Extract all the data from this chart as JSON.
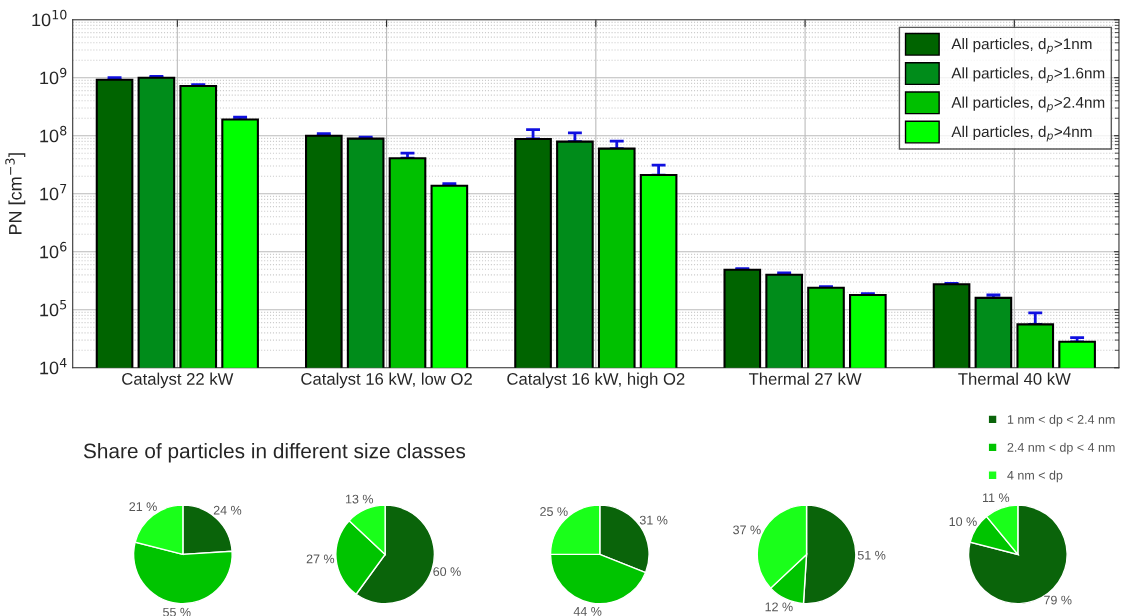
{
  "chart_data": [
    {
      "type": "bar",
      "ylabel": "PN [cm$^{−3}$]",
      "categories": [
        "Catalyst 22 kW",
        "Catalyst 16 kW, low O2",
        "Catalyst 16 kW, high O2",
        "Thermal 27 kW",
        "Thermal 40 kW"
      ],
      "log": "y",
      "ylim": [
        10000,
        10000000000
      ],
      "yticks": [
        {
          "value": 10000,
          "label": "10$^{4}$"
        },
        {
          "value": 100000,
          "label": "10$^{5}$"
        },
        {
          "value": 1000000,
          "label": "10$^{6}$"
        },
        {
          "value": 10000000,
          "label": "10$^{7}$"
        },
        {
          "value": 100000000,
          "label": "10$^{8}$"
        },
        {
          "value": 1000000000,
          "label": "10$^{9}$"
        },
        {
          "value": 10000000000,
          "label": "10$^{10}$"
        }
      ],
      "grid": true,
      "legend": "top right",
      "series": [
        {
          "name": "All particles, d$_{p}$>1nm",
          "color": "#006400",
          "values": [
            920000000,
            100000000,
            88000000,
            490000,
            275000
          ],
          "errors": [
            [
              920000000,
              1000000000
            ],
            [
              100000000,
              109000000
            ],
            [
              88000000,
              127000000
            ],
            [
              490000,
              510000
            ],
            [
              275000,
              285000
            ]
          ]
        },
        {
          "name": "All particles, d$_{p}$>1.6nm",
          "color": "#008c1a",
          "values": [
            1000000000,
            89000000,
            79000000,
            400000,
            160000
          ],
          "errors": [
            [
              1000000000,
              1050000000
            ],
            [
              89000000,
              95000000
            ],
            [
              79000000,
              112000000
            ],
            [
              400000,
              430000
            ],
            [
              160000,
              180000
            ]
          ]
        },
        {
          "name": "All particles, d$_{p}$>2.4nm",
          "color": "#00c000",
          "values": [
            720000000,
            41000000,
            60000000,
            240000,
            56000
          ],
          "errors": [
            [
              720000000,
              760000000
            ],
            [
              41000000,
              50000000
            ],
            [
              60000000,
              81000000
            ],
            [
              240000,
              250000
            ],
            [
              56000,
              88000
            ]
          ]
        },
        {
          "name": "All particles, d$_{p}$>4nm",
          "color": "#00ff00",
          "values": [
            190000000,
            13700000,
            21000000,
            180000,
            28000
          ],
          "errors": [
            [
              190000000,
              210000000
            ],
            [
              13700000,
              15000000
            ],
            [
              21000000,
              31000000
            ],
            [
              180000,
              190000
            ],
            [
              28000,
              33000
            ]
          ]
        }
      ]
    },
    {
      "type": "pie",
      "title": "Share of particles in different size classes",
      "categories": [
        "1 nm < dp < 2.4 nm",
        "2.4 nm < dp < 4 nm",
        "4 nm < dp"
      ],
      "values": [
        24,
        55,
        21
      ],
      "value_labels": [
        "24 %",
        "55 %",
        "21 %"
      ],
      "colors": [
        "#0a640a",
        "#00c400",
        "#1aff1a"
      ],
      "legend": "top right"
    },
    {
      "type": "pie",
      "categories": [
        null,
        null,
        null
      ],
      "values": [
        60,
        27,
        13
      ],
      "value_labels": [
        "60 %",
        "27 %",
        "13 %"
      ],
      "colors": [
        "#0a640a",
        "#00c400",
        "#1aff1a"
      ]
    },
    {
      "type": "pie",
      "categories": [
        null,
        null,
        null
      ],
      "values": [
        31,
        44,
        25
      ],
      "value_labels": [
        "31 %",
        "44 %",
        "25 %"
      ],
      "colors": [
        "#0a640a",
        "#00c400",
        "#1aff1a"
      ]
    },
    {
      "type": "pie",
      "categories": [
        null,
        null,
        null
      ],
      "values": [
        51,
        12,
        37
      ],
      "value_labels": [
        "51 %",
        "12 %",
        "37 %"
      ],
      "colors": [
        "#0a640a",
        "#00c400",
        "#1aff1a"
      ]
    },
    {
      "type": "pie",
      "categories": [
        null,
        null,
        null
      ],
      "values": [
        79,
        10,
        11
      ],
      "value_labels": [
        "79 %",
        "10 %",
        "11 %"
      ],
      "colors": [
        "#0a640a",
        "#00c400",
        "#1aff1a"
      ]
    }
  ]
}
